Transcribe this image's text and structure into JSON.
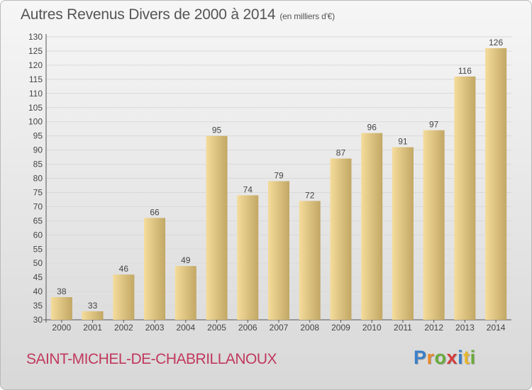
{
  "title": "Autres Revenus Divers de 2000 à 2014",
  "subtitle": "(en milliers d'€)",
  "commune": "SAINT-MICHEL-DE-CHABRILLANOUX",
  "logo": {
    "letters": [
      "P",
      "r",
      "o",
      "x",
      "i",
      "t",
      "i"
    ],
    "colors": [
      "#3a7fc8",
      "#e8892b",
      "#69ab3a",
      "#d53a3a",
      "#3a7fc8",
      "#e8b52b",
      "#69ab3a"
    ]
  },
  "colors": {
    "bar_light": "#f5dc9a",
    "bar_dark": "#c2a765",
    "grid": "#d9d9d9",
    "commune_text": "#c0395d"
  },
  "chart_data": {
    "type": "bar",
    "categories": [
      "2000",
      "2001",
      "2002",
      "2003",
      "2004",
      "2005",
      "2006",
      "2007",
      "2008",
      "2009",
      "2010",
      "2011",
      "2012",
      "2013",
      "2014"
    ],
    "values": [
      38,
      33,
      46,
      66,
      49,
      95,
      74,
      79,
      72,
      87,
      96,
      91,
      97,
      116,
      126
    ],
    "title": "Autres Revenus Divers de 2000 à 2014",
    "xlabel": "",
    "ylabel": "",
    "ylim": [
      30,
      130
    ],
    "yticks": [
      30,
      35,
      40,
      45,
      50,
      55,
      60,
      65,
      70,
      75,
      80,
      85,
      90,
      95,
      100,
      105,
      110,
      115,
      120,
      125,
      130
    ],
    "grid": true,
    "data_labels": true
  }
}
